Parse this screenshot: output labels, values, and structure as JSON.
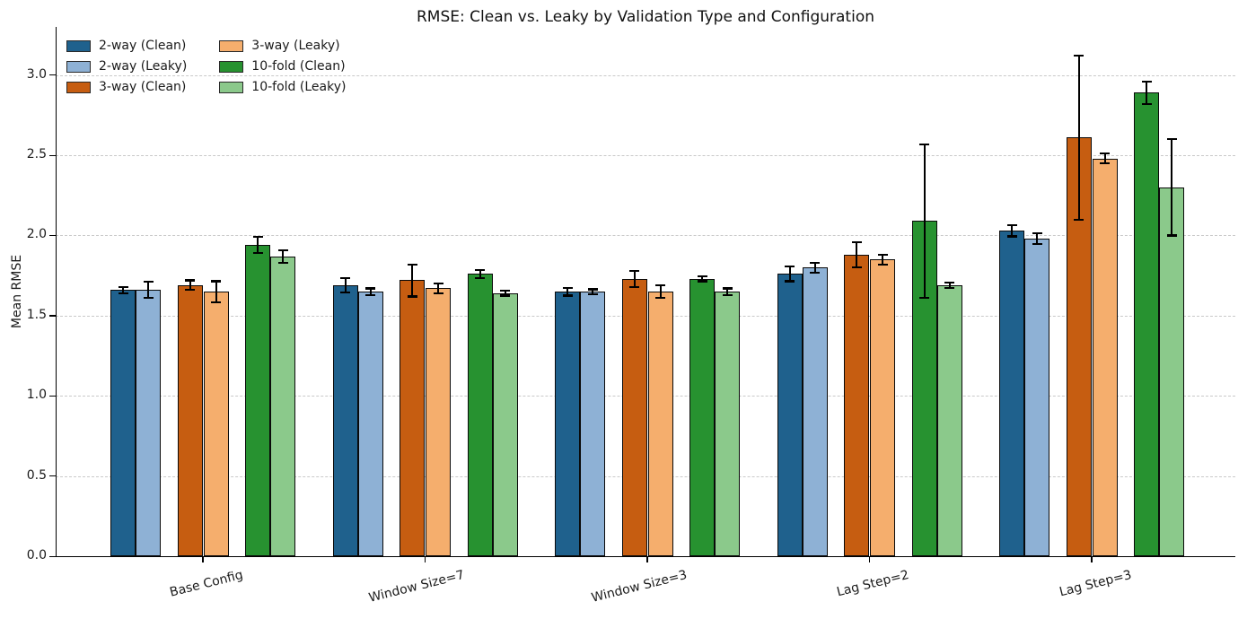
{
  "chart_data": {
    "type": "bar",
    "title": "RMSE: Clean vs. Leaky by Validation Type and Configuration",
    "xlabel": "",
    "ylabel": "Mean RMSE",
    "categories": [
      "Base Config",
      "Window Size=7",
      "Window Size=3",
      "Lag Step=2",
      "Lag Step=3"
    ],
    "series": [
      {
        "name": "2-way (Clean)",
        "color": "#1f618d",
        "values": [
          1.66,
          1.69,
          1.65,
          1.76,
          2.03
        ],
        "errors": [
          0.02,
          0.045,
          0.025,
          0.045,
          0.035
        ]
      },
      {
        "name": "2-way (Leaky)",
        "color": "#8eb1d5",
        "values": [
          1.66,
          1.65,
          1.65,
          1.8,
          1.98
        ],
        "errors": [
          0.05,
          0.02,
          0.015,
          0.03,
          0.035
        ]
      },
      {
        "name": "3-way (Clean)",
        "color": "#c65d11",
        "values": [
          1.69,
          1.72,
          1.73,
          1.88,
          2.61
        ],
        "errors": [
          0.03,
          0.1,
          0.05,
          0.08,
          0.51
        ]
      },
      {
        "name": "3-way (Leaky)",
        "color": "#f5ae6d",
        "values": [
          1.65,
          1.67,
          1.65,
          1.85,
          2.48
        ],
        "errors": [
          0.065,
          0.03,
          0.04,
          0.03,
          0.03
        ]
      },
      {
        "name": "10-fold (Clean)",
        "color": "#279230",
        "values": [
          1.94,
          1.76,
          1.73,
          2.09,
          2.89
        ],
        "errors": [
          0.05,
          0.025,
          0.015,
          0.48,
          0.07
        ]
      },
      {
        "name": "10-fold (Leaky)",
        "color": "#8bc98b",
        "values": [
          1.87,
          1.64,
          1.65,
          1.69,
          2.3
        ],
        "errors": [
          0.04,
          0.015,
          0.02,
          0.015,
          0.3
        ]
      }
    ],
    "yticks": [
      0.0,
      0.5,
      1.0,
      1.5,
      2.0,
      2.5,
      3.0
    ],
    "ytick_labels": [
      "0.0",
      "0.5",
      "1.0",
      "1.5",
      "2.0",
      "2.5",
      "3.0"
    ],
    "ylim": [
      0,
      3.3
    ],
    "grid": "horizontal-dashed",
    "error_bars": true,
    "bar_edge_color": "#0a0a0a",
    "gridline_color": "#c9c9c9",
    "legend": {
      "position": "upper-left",
      "columns": 2,
      "frame": false
    }
  }
}
